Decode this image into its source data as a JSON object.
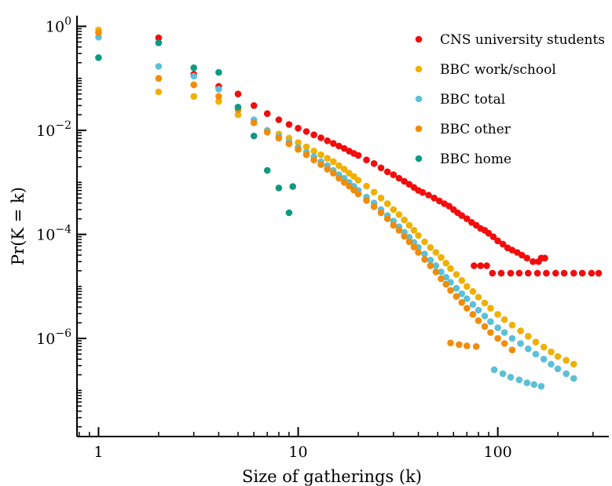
{
  "chart_data": {
    "type": "scatter",
    "title": "",
    "xlabel": "Size of gatherings (k)",
    "ylabel": "Pr(K = k)",
    "x_scale": "log",
    "y_scale": "log",
    "xlim": [
      0.78,
      360
    ],
    "ylim": [
      1.3e-08,
      1.6
    ],
    "x_ticks": [
      {
        "value": 1,
        "label": "1"
      },
      {
        "value": 10,
        "label": "10"
      },
      {
        "value": 100,
        "label": "100"
      }
    ],
    "y_ticks": [
      {
        "value": 1,
        "base": "10",
        "exp": "0"
      },
      {
        "value": 0.01,
        "base": "10",
        "exp": "−2"
      },
      {
        "value": 0.0001,
        "base": "10",
        "exp": "−4"
      },
      {
        "value": 1e-06,
        "base": "10",
        "exp": "−6"
      }
    ],
    "grid": false,
    "legend_position": "top-right",
    "series": [
      {
        "name": "CNS university students",
        "color": "#f20d0d",
        "points": [
          [
            2,
            0.6
          ],
          [
            3,
            0.12
          ],
          [
            4,
            0.07
          ],
          [
            5,
            0.05
          ],
          [
            6,
            0.03
          ],
          [
            7,
            0.021
          ],
          [
            8,
            0.016
          ],
          [
            9,
            0.013
          ],
          [
            10,
            0.011
          ],
          [
            11,
            0.0095
          ],
          [
            12,
            0.0082
          ],
          [
            13,
            0.0072
          ],
          [
            14,
            0.0063
          ],
          [
            15,
            0.0056
          ],
          [
            16,
            0.005
          ],
          [
            17,
            0.0045
          ],
          [
            18,
            0.004
          ],
          [
            19,
            0.0036
          ],
          [
            20,
            0.0033
          ],
          [
            22,
            0.0027
          ],
          [
            24,
            0.0023
          ],
          [
            26,
            0.0019
          ],
          [
            28,
            0.0016
          ],
          [
            30,
            0.0014
          ],
          [
            32,
            0.0012
          ],
          [
            34,
            0.00105
          ],
          [
            36,
            0.00092
          ],
          [
            38,
            0.0008
          ],
          [
            40,
            0.0007
          ],
          [
            42,
            0.00064
          ],
          [
            45,
            0.00057
          ],
          [
            48,
            0.0005
          ],
          [
            51,
            0.00044
          ],
          [
            54,
            0.00039
          ],
          [
            57,
            0.00035
          ],
          [
            60,
            0.0003
          ],
          [
            63,
            0.00026
          ],
          [
            66,
            0.00023
          ],
          [
            70,
            0.0002
          ],
          [
            74,
            0.00017
          ],
          [
            78,
            0.00015
          ],
          [
            82,
            0.00013
          ],
          [
            86,
            0.00012
          ],
          [
            90,
            0.000105
          ],
          [
            95,
            9e-05
          ],
          [
            100,
            7.5e-05
          ],
          [
            106,
            6.5e-05
          ],
          [
            112,
            5.5e-05
          ],
          [
            118,
            5e-05
          ],
          [
            125,
            4.5e-05
          ],
          [
            132,
            4e-05
          ],
          [
            140,
            3.5e-05
          ],
          [
            150,
            3e-05
          ],
          [
            160,
            3e-05
          ],
          [
            165,
            3.5e-05
          ],
          [
            172,
            3.5e-05
          ],
          [
            76,
            2.5e-05
          ],
          [
            82,
            2.5e-05
          ],
          [
            88,
            2.5e-05
          ],
          [
            94,
            1.8e-05
          ],
          [
            104,
            1.8e-05
          ],
          [
            116,
            1.8e-05
          ],
          [
            128,
            1.8e-05
          ],
          [
            142,
            1.8e-05
          ],
          [
            158,
            1.8e-05
          ],
          [
            175,
            1.8e-05
          ],
          [
            195,
            1.8e-05
          ],
          [
            215,
            1.8e-05
          ],
          [
            240,
            1.8e-05
          ],
          [
            265,
            1.8e-05
          ],
          [
            295,
            1.8e-05
          ],
          [
            320,
            1.8e-05
          ]
        ]
      },
      {
        "name": "BBC work/school",
        "color": "#f0b000",
        "points": [
          [
            1,
            0.85
          ],
          [
            2,
            0.055
          ],
          [
            3,
            0.045
          ],
          [
            4,
            0.036
          ],
          [
            5,
            0.02
          ],
          [
            6,
            0.014
          ],
          [
            7,
            0.01
          ],
          [
            8,
            0.0085
          ],
          [
            9,
            0.0071
          ],
          [
            10,
            0.0058
          ],
          [
            11,
            0.0048
          ],
          [
            12,
            0.004
          ],
          [
            13,
            0.0034
          ],
          [
            14,
            0.0029
          ],
          [
            15,
            0.0025
          ],
          [
            16,
            0.0021
          ],
          [
            17,
            0.0018
          ],
          [
            18,
            0.0015
          ],
          [
            19,
            0.0013
          ],
          [
            20,
            0.0011
          ],
          [
            22,
            0.00085
          ],
          [
            24,
            0.00065
          ],
          [
            26,
            0.0005
          ],
          [
            28,
            0.00039
          ],
          [
            30,
            0.0003
          ],
          [
            32,
            0.00024
          ],
          [
            34,
            0.00019
          ],
          [
            36,
            0.00015
          ],
          [
            38,
            0.00012
          ],
          [
            40,
            9.5e-05
          ],
          [
            43,
            7.2e-05
          ],
          [
            46,
            5.6e-05
          ],
          [
            49,
            4.5e-05
          ],
          [
            52,
            3.6e-05
          ],
          [
            55,
            2.8e-05
          ],
          [
            58,
            2.2e-05
          ],
          [
            62,
            1.7e-05
          ],
          [
            66,
            1.3e-05
          ],
          [
            70,
            1e-05
          ],
          [
            75,
            8e-06
          ],
          [
            80,
            6.2e-06
          ],
          [
            86,
            4.8e-06
          ],
          [
            92,
            3.8e-06
          ],
          [
            100,
            2.9e-06
          ],
          [
            108,
            2.3e-06
          ],
          [
            118,
            1.8e-06
          ],
          [
            130,
            1.4e-06
          ],
          [
            142,
            1.1e-06
          ],
          [
            155,
            8.5e-07
          ],
          [
            170,
            6.8e-07
          ],
          [
            185,
            5.5e-07
          ],
          [
            200,
            4.5e-07
          ],
          [
            220,
            3.8e-07
          ],
          [
            240,
            3.2e-07
          ]
        ]
      },
      {
        "name": "BBC total",
        "color": "#5bc0d8",
        "points": [
          [
            1,
            0.62
          ],
          [
            2,
            0.17
          ],
          [
            3,
            0.11
          ],
          [
            4,
            0.062
          ],
          [
            5,
            0.025
          ],
          [
            6,
            0.016
          ],
          [
            7,
            0.0098
          ],
          [
            8,
            0.0075
          ],
          [
            9,
            0.006
          ],
          [
            10,
            0.0047
          ],
          [
            11,
            0.0038
          ],
          [
            12,
            0.0031
          ],
          [
            13,
            0.0025
          ],
          [
            14,
            0.0021
          ],
          [
            15,
            0.0017
          ],
          [
            16,
            0.0014
          ],
          [
            17,
            0.0012
          ],
          [
            18,
            0.001
          ],
          [
            19,
            0.00084
          ],
          [
            20,
            0.0007
          ],
          [
            22,
            0.00052
          ],
          [
            24,
            0.0004
          ],
          [
            26,
            0.0003
          ],
          [
            28,
            0.00023
          ],
          [
            30,
            0.00018
          ],
          [
            32,
            0.00014
          ],
          [
            34,
            0.00011
          ],
          [
            36,
            8.8e-05
          ],
          [
            38,
            7e-05
          ],
          [
            40,
            5.6e-05
          ],
          [
            43,
            4.2e-05
          ],
          [
            46,
            3.2e-05
          ],
          [
            49,
            2.5e-05
          ],
          [
            52,
            1.9e-05
          ],
          [
            55,
            1.5e-05
          ],
          [
            58,
            1.2e-05
          ],
          [
            62,
            9.2e-06
          ],
          [
            66,
            7.2e-06
          ],
          [
            70,
            5.8e-06
          ],
          [
            75,
            4.5e-06
          ],
          [
            80,
            3.5e-06
          ],
          [
            86,
            2.7e-06
          ],
          [
            92,
            2.1e-06
          ],
          [
            100,
            1.6e-06
          ],
          [
            108,
            1.3e-06
          ],
          [
            118,
            1e-06
          ],
          [
            130,
            8e-07
          ],
          [
            142,
            6.3e-07
          ],
          [
            155,
            5e-07
          ],
          [
            170,
            4e-07
          ],
          [
            185,
            3.2e-07
          ],
          [
            200,
            2.6e-07
          ],
          [
            220,
            2.1e-07
          ],
          [
            240,
            1.7e-07
          ],
          [
            96,
            2.5e-07
          ],
          [
            106,
            2.1e-07
          ],
          [
            116,
            1.8e-07
          ],
          [
            128,
            1.6e-07
          ],
          [
            140,
            1.4e-07
          ],
          [
            152,
            1.3e-07
          ],
          [
            165,
            1.2e-07
          ]
        ]
      },
      {
        "name": "BBC other",
        "color": "#f08c0a",
        "points": [
          [
            1,
            0.75
          ],
          [
            2,
            0.1
          ],
          [
            3,
            0.075
          ],
          [
            4,
            0.045
          ],
          [
            5,
            0.025
          ],
          [
            6,
            0.014
          ],
          [
            7,
            0.0092
          ],
          [
            8,
            0.0071
          ],
          [
            9,
            0.0055
          ],
          [
            10,
            0.0043
          ],
          [
            11,
            0.0034
          ],
          [
            12,
            0.0027
          ],
          [
            13,
            0.0022
          ],
          [
            14,
            0.0018
          ],
          [
            15,
            0.0015
          ],
          [
            16,
            0.0012
          ],
          [
            17,
            0.001
          ],
          [
            18,
            0.00085
          ],
          [
            19,
            0.00071
          ],
          [
            20,
            0.0006
          ],
          [
            22,
            0.00045
          ],
          [
            24,
            0.00034
          ],
          [
            26,
            0.00026
          ],
          [
            28,
            0.0002
          ],
          [
            30,
            0.00015
          ],
          [
            32,
            0.00012
          ],
          [
            34,
            9.2e-05
          ],
          [
            36,
            7.2e-05
          ],
          [
            38,
            5.7e-05
          ],
          [
            40,
            4.5e-05
          ],
          [
            43,
            3.3e-05
          ],
          [
            46,
            2.5e-05
          ],
          [
            49,
            1.9e-05
          ],
          [
            52,
            1.4e-05
          ],
          [
            55,
            1.1e-05
          ],
          [
            58,
            8.4e-06
          ],
          [
            62,
            6.4e-06
          ],
          [
            66,
            4.9e-06
          ],
          [
            70,
            3.8e-06
          ],
          [
            75,
            2.9e-06
          ],
          [
            80,
            2.2e-06
          ],
          [
            86,
            1.7e-06
          ],
          [
            92,
            1.3e-06
          ],
          [
            100,
            1e-06
          ],
          [
            108,
            8e-07
          ],
          [
            118,
            6e-07
          ],
          [
            58,
            8.2e-07
          ],
          [
            64,
            7.6e-07
          ],
          [
            70,
            7.2e-07
          ],
          [
            78,
            7e-07
          ]
        ]
      },
      {
        "name": "BBC home",
        "color": "#0f9980",
        "points": [
          [
            1,
            0.25
          ],
          [
            2,
            0.48
          ],
          [
            3,
            0.16
          ],
          [
            4,
            0.13
          ],
          [
            5,
            0.028
          ],
          [
            6,
            0.0078
          ],
          [
            7,
            0.0017
          ],
          [
            8,
            0.00078
          ],
          [
            9,
            0.00026
          ],
          [
            9.4,
            0.00083
          ]
        ]
      }
    ]
  }
}
